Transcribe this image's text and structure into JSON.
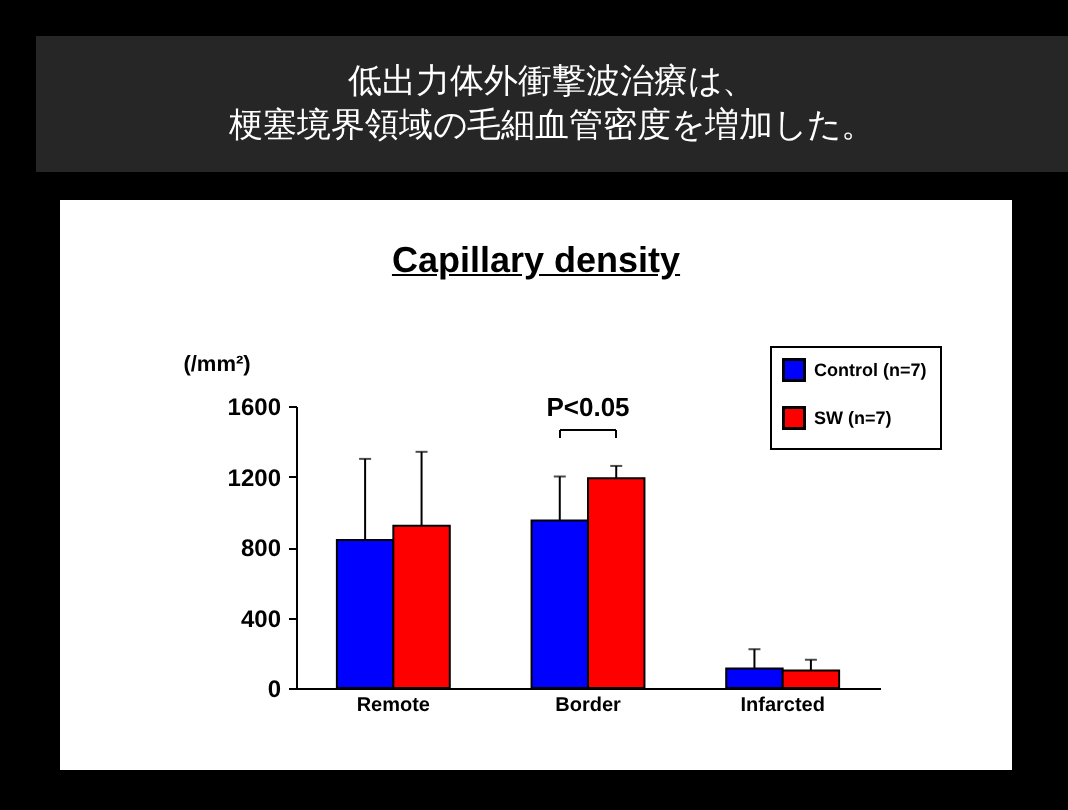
{
  "chart_data": {
    "type": "bar",
    "title": "低出力体外衝撃波治療は、梗塞境界領域の毛細血管密度を増加した。",
    "subtitle": "Capillary density",
    "ylabel": "(/mm²)",
    "categories": [
      "Remote",
      "Border",
      "Infarcted"
    ],
    "series": [
      {
        "name": "Control (n=7)",
        "color": "#0000ff",
        "values": [
          840,
          950,
          110
        ],
        "errors": [
          [
            840,
            1300
          ],
          [
            950,
            1200
          ],
          [
            110,
            220
          ]
        ]
      },
      {
        "name": "SW (n=7)",
        "color": "#ff0000",
        "values": [
          920,
          1190,
          100
        ],
        "errors": [
          [
            920,
            1340
          ],
          [
            1190,
            1260
          ],
          [
            100,
            160
          ]
        ]
      }
    ],
    "ylim": [
      0,
      1600
    ],
    "yticks": [
      0,
      400,
      800,
      1200,
      1600
    ],
    "annotations": [
      "P<0.05"
    ],
    "legend": "top right",
    "grid": false
  }
}
